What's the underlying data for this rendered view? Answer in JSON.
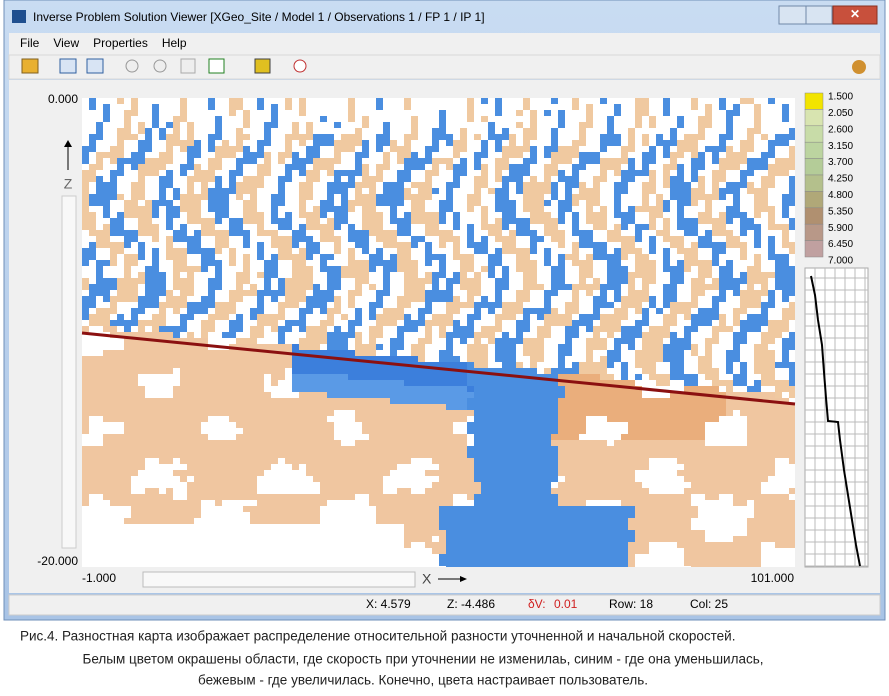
{
  "window": {
    "title": "Inverse Problem Solution Viewer  [XGeo_Site / Model 1 / Observations 1 / FP 1 / IP 1]"
  },
  "menu": [
    "File",
    "View",
    "Properties",
    "Help"
  ],
  "axes": {
    "z_top": "0.000",
    "z_bottom": "-20.000",
    "z_label": "Z",
    "x_left": "-1.000",
    "x_right": "101.000",
    "x_label": "X"
  },
  "colorbar": [
    "1.500",
    "2.050",
    "2.600",
    "3.150",
    "3.700",
    "4.250",
    "4.800",
    "5.350",
    "5.900",
    "6.450",
    "7.000"
  ],
  "status": {
    "x": "X: 4.579",
    "z": "Z: -4.486",
    "dv_label": "δV:",
    "dv_value": "0.01",
    "row": "Row: 18",
    "col": "Col: 25"
  },
  "caption": [
    "Рис.4. Разностная карта изображает распределение относительной разности уточненной и начальной скоростей.",
    "Белым цветом окрашены области, где скорость при уточнении не изменилаь, синим - где она уменьшилась,",
    "бежевым - где увеличилась. Конечно, цвета настраивает пользователь."
  ]
}
